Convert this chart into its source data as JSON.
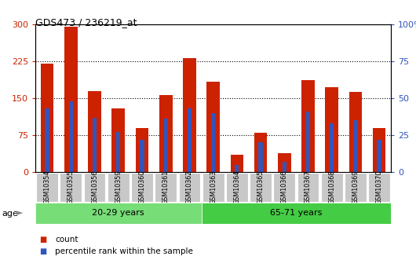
{
  "title": "GDS473 / 236219_at",
  "categories": [
    "GSM10354",
    "GSM10355",
    "GSM10356",
    "GSM10359",
    "GSM10360",
    "GSM10361",
    "GSM10362",
    "GSM10363",
    "GSM10364",
    "GSM10365",
    "GSM10366",
    "GSM10367",
    "GSM10368",
    "GSM10369",
    "GSM10370"
  ],
  "counts": [
    220,
    295,
    165,
    130,
    90,
    157,
    232,
    183,
    35,
    80,
    38,
    187,
    172,
    163,
    90
  ],
  "percentile_ranks": [
    43,
    48,
    37,
    27,
    22,
    36,
    43,
    40,
    5,
    20,
    7,
    41,
    33,
    35,
    22
  ],
  "group_labels": [
    "20-29 years",
    "65-71 years"
  ],
  "group1_count": 7,
  "group2_count": 8,
  "bar_color": "#cc2200",
  "percentile_color": "#3355bb",
  "ylim_left": [
    0,
    300
  ],
  "ylim_right": [
    0,
    100
  ],
  "yticks_left": [
    0,
    75,
    150,
    225,
    300
  ],
  "yticks_right": [
    0,
    25,
    50,
    75,
    100
  ],
  "group_bg_color": "#77dd77",
  "group2_bg_color": "#44cc44",
  "tick_label_bg": "#c8c8c8",
  "legend_items": [
    "count",
    "percentile rank within the sample"
  ],
  "legend_colors": [
    "#cc2200",
    "#3355bb"
  ],
  "bar_width": 0.55,
  "age_label": "age"
}
